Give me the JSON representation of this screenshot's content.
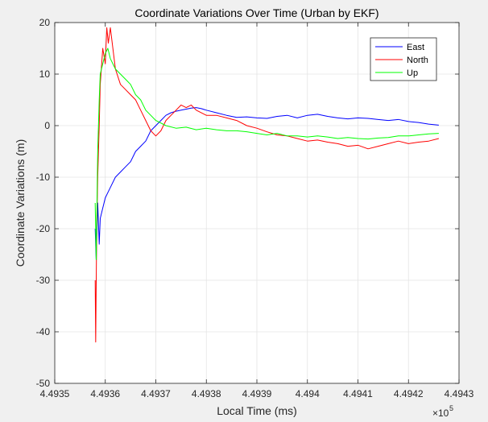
{
  "chart_data": {
    "type": "line",
    "title": "Coordinate Variations Over Time (Urban by EKF)",
    "xlabel": "Local Time (ms)",
    "ylabel": "Coordinate Variations (m)",
    "x_exponent_label": "×10",
    "x_exponent_power": "5",
    "xlim": [
      4.4935,
      4.4943
    ],
    "ylim": [
      -50,
      20
    ],
    "xticks": [
      4.4935,
      4.4936,
      4.4937,
      4.4938,
      4.4939,
      4.494,
      4.4941,
      4.4942,
      4.4943
    ],
    "xtick_labels": [
      "4.4935",
      "4.4936",
      "4.4937",
      "4.4938",
      "4.4939",
      "4.494",
      "4.4941",
      "4.4942",
      "4.4943"
    ],
    "yticks": [
      -50,
      -40,
      -30,
      -20,
      -10,
      0,
      10,
      20
    ],
    "ytick_labels": [
      "-50",
      "-40",
      "-30",
      "-20",
      "-10",
      "0",
      "10",
      "20"
    ],
    "grid": true,
    "legend_position": "top-right",
    "series": [
      {
        "name": "East",
        "color": "#0000ff",
        "x": [
          4.49358,
          4.493582,
          4.493585,
          4.493588,
          4.49359,
          4.493595,
          4.4936,
          4.493605,
          4.49361,
          4.49362,
          4.49363,
          4.49364,
          4.49365,
          4.49366,
          4.49367,
          4.49368,
          4.49369,
          4.4937,
          4.49371,
          4.49372,
          4.49373,
          4.49374,
          4.49375,
          4.49376,
          4.49377,
          4.49378,
          4.49379,
          4.4938,
          4.49382,
          4.49384,
          4.49386,
          4.49388,
          4.4939,
          4.49392,
          4.49394,
          4.49396,
          4.49398,
          4.494,
          4.49402,
          4.49404,
          4.49406,
          4.49408,
          4.4941,
          4.49412,
          4.49414,
          4.49416,
          4.49418,
          4.4942,
          4.49422,
          4.49424,
          4.49426
        ],
        "y": [
          -20,
          -26,
          -15,
          -23,
          -18,
          -16,
          -14,
          -13,
          -12,
          -10,
          -9,
          -8,
          -7,
          -5,
          -4,
          -3,
          -1,
          0,
          1,
          2,
          2.5,
          2.8,
          3,
          3.2,
          3.4,
          3.5,
          3.3,
          3.0,
          2.5,
          2.0,
          1.6,
          1.7,
          1.5,
          1.4,
          1.8,
          2.0,
          1.5,
          2.0,
          2.2,
          1.8,
          1.5,
          1.3,
          1.5,
          1.4,
          1.2,
          1.0,
          1.2,
          0.8,
          0.6,
          0.3,
          0.1
        ]
      },
      {
        "name": "North",
        "color": "#ff0000",
        "x": [
          4.49358,
          4.493581,
          4.493583,
          4.493585,
          4.493588,
          4.49359,
          4.493595,
          4.4936,
          4.493603,
          4.493606,
          4.49361,
          4.49362,
          4.49363,
          4.49364,
          4.49365,
          4.49366,
          4.49367,
          4.49368,
          4.49369,
          4.4937,
          4.49371,
          4.49372,
          4.49373,
          4.49374,
          4.49375,
          4.49376,
          4.49377,
          4.49378,
          4.4938,
          4.49382,
          4.49384,
          4.49386,
          4.49388,
          4.4939,
          4.49392,
          4.49394,
          4.49396,
          4.49398,
          4.494,
          4.49402,
          4.49404,
          4.49406,
          4.49408,
          4.4941,
          4.49412,
          4.49414,
          4.49416,
          4.49418,
          4.4942,
          4.49422,
          4.49424,
          4.49426
        ],
        "y": [
          -30,
          -42,
          -20,
          -10,
          0,
          8,
          15,
          12,
          19,
          16,
          19,
          11,
          8,
          7,
          6,
          5,
          3,
          1,
          -1,
          -2,
          -1,
          1,
          2,
          3,
          4,
          3.5,
          4,
          3,
          2,
          2,
          1.5,
          1,
          0,
          -0.5,
          -1.2,
          -1.8,
          -2.0,
          -2.5,
          -3.0,
          -2.8,
          -3.2,
          -3.5,
          -4.0,
          -3.8,
          -4.5,
          -4.0,
          -3.5,
          -3.0,
          -3.5,
          -3.2,
          -3.0,
          -2.5
        ]
      },
      {
        "name": "Up",
        "color": "#00ff00",
        "x": [
          4.49358,
          4.493582,
          4.493585,
          4.493588,
          4.49359,
          4.493595,
          4.4936,
          4.493605,
          4.49361,
          4.49362,
          4.49363,
          4.49364,
          4.49365,
          4.49366,
          4.49367,
          4.49368,
          4.49369,
          4.4937,
          4.49372,
          4.49374,
          4.49376,
          4.49378,
          4.4938,
          4.49382,
          4.49384,
          4.49386,
          4.49388,
          4.4939,
          4.49392,
          4.49394,
          4.49396,
          4.49398,
          4.494,
          4.49402,
          4.49404,
          4.49406,
          4.49408,
          4.4941,
          4.49412,
          4.49414,
          4.49416,
          4.49418,
          4.4942,
          4.49422,
          4.49424,
          4.49426
        ],
        "y": [
          -15,
          -26,
          -5,
          5,
          10,
          12,
          14,
          15,
          13,
          11,
          10,
          9,
          8,
          6,
          5,
          3,
          2,
          1,
          0,
          -0.5,
          -0.3,
          -0.8,
          -0.5,
          -0.8,
          -1.0,
          -1.0,
          -1.2,
          -1.5,
          -1.8,
          -1.5,
          -2.0,
          -2.0,
          -2.2,
          -2.0,
          -2.2,
          -2.5,
          -2.3,
          -2.5,
          -2.6,
          -2.4,
          -2.3,
          -2.0,
          -2.0,
          -1.8,
          -1.6,
          -1.5
        ]
      }
    ]
  }
}
